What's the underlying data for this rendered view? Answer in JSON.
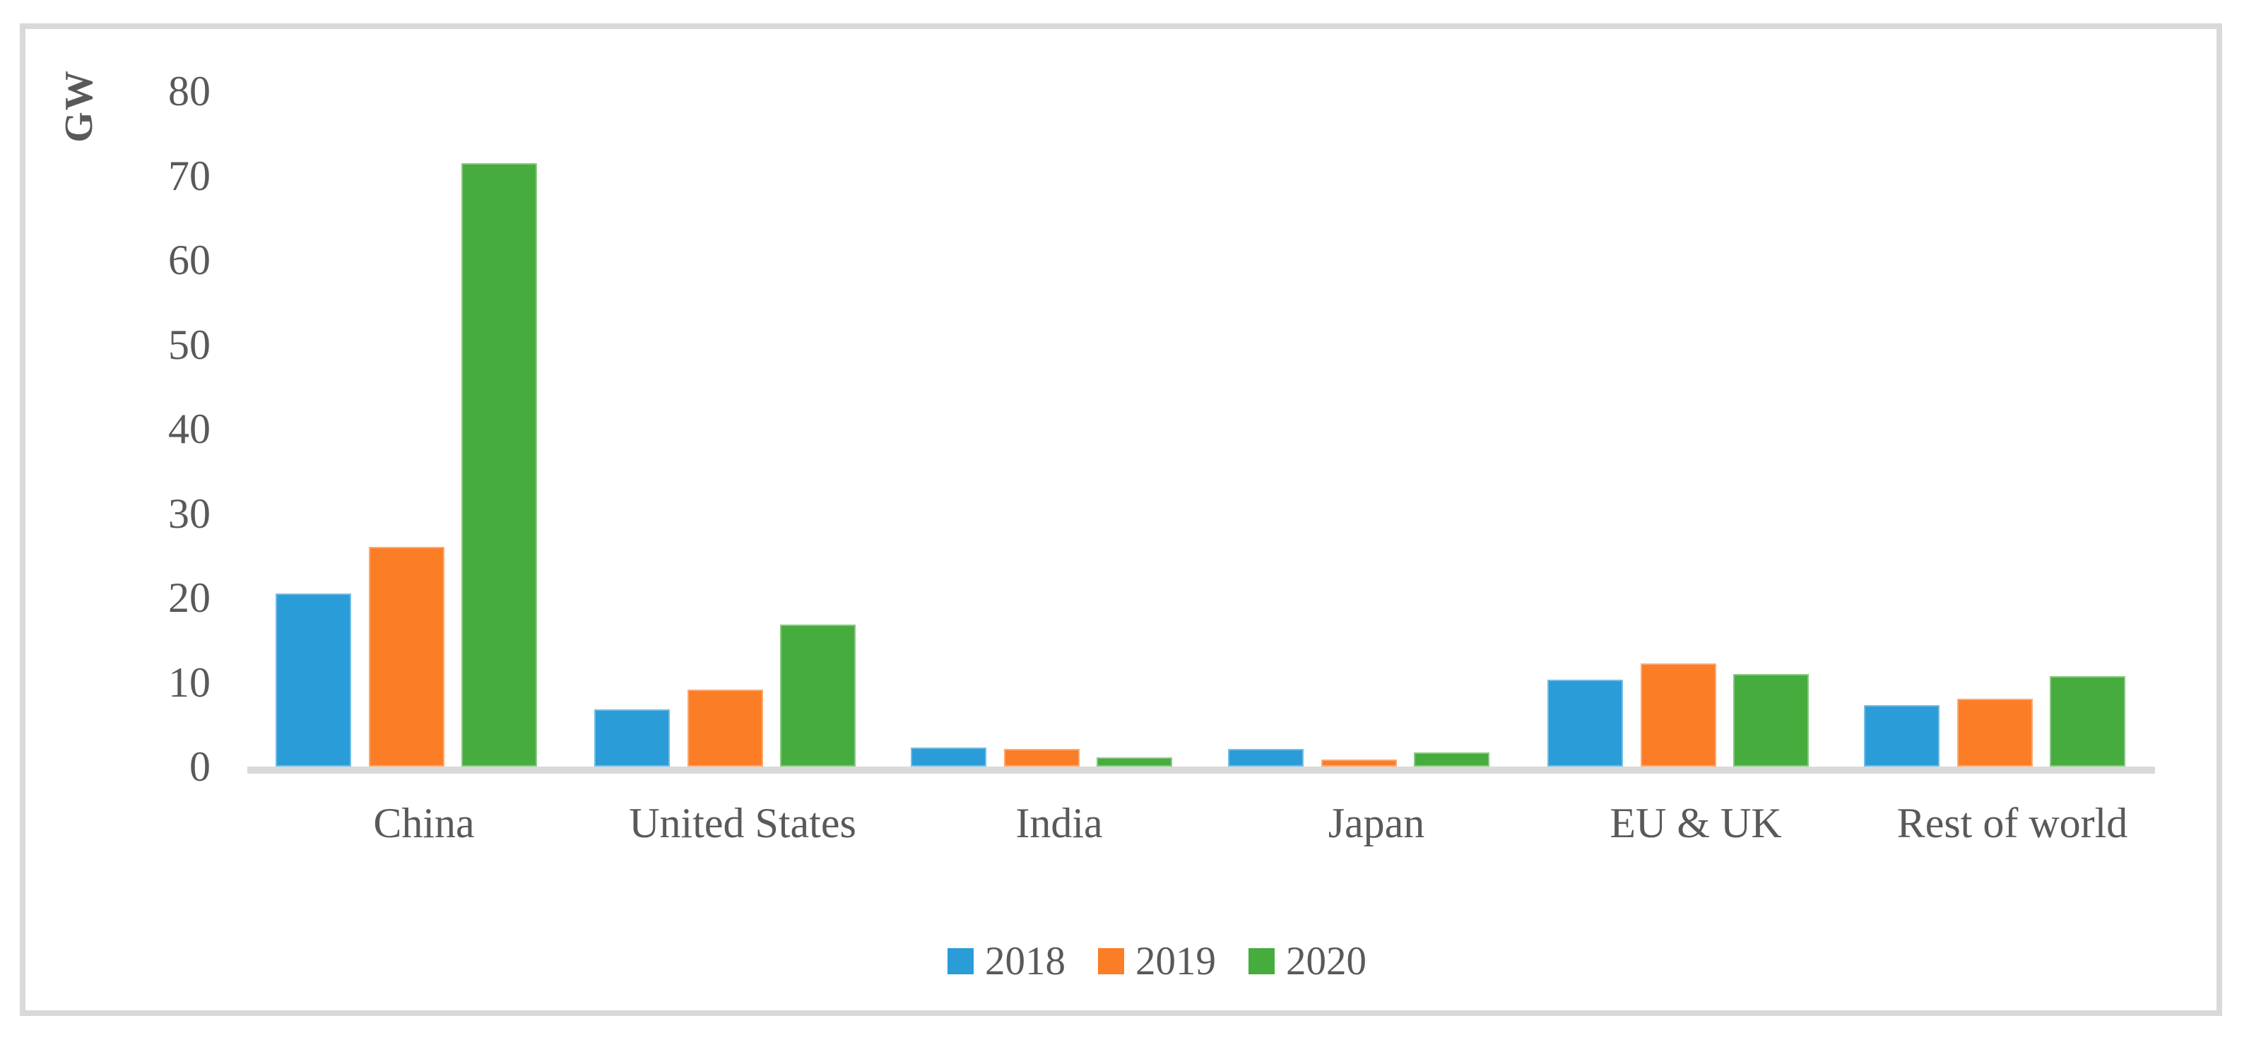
{
  "chart_data": {
    "type": "bar",
    "title": "",
    "ylabel": "GW",
    "xlabel": "",
    "categories": [
      "China",
      "United States",
      "India",
      "Japan",
      "EU & UK",
      "Rest of world"
    ],
    "series": [
      {
        "name": "2018",
        "values": [
          20.5,
          6.8,
          2.3,
          2.1,
          10.3,
          7.3
        ]
      },
      {
        "name": "2019",
        "values": [
          26,
          9.1,
          2.1,
          0.8,
          12.2,
          8
        ]
      },
      {
        "name": "2020",
        "values": [
          71.5,
          16.8,
          1.1,
          1.7,
          11,
          10.7
        ]
      }
    ],
    "y_ticks": [
      80,
      70,
      60,
      50,
      40,
      30,
      20,
      10,
      0
    ],
    "ylim": [
      0,
      80
    ],
    "grid": false,
    "legend_position": "bottom"
  },
  "colors": {
    "series": {
      "2018": "#2a9cd7",
      "2019": "#fb7d26",
      "2020": "#47ac3e"
    },
    "axis_line": "#d9d9d9",
    "frame_border": "#d9d9d9",
    "text": "#595959",
    "background": "#ffffff"
  }
}
